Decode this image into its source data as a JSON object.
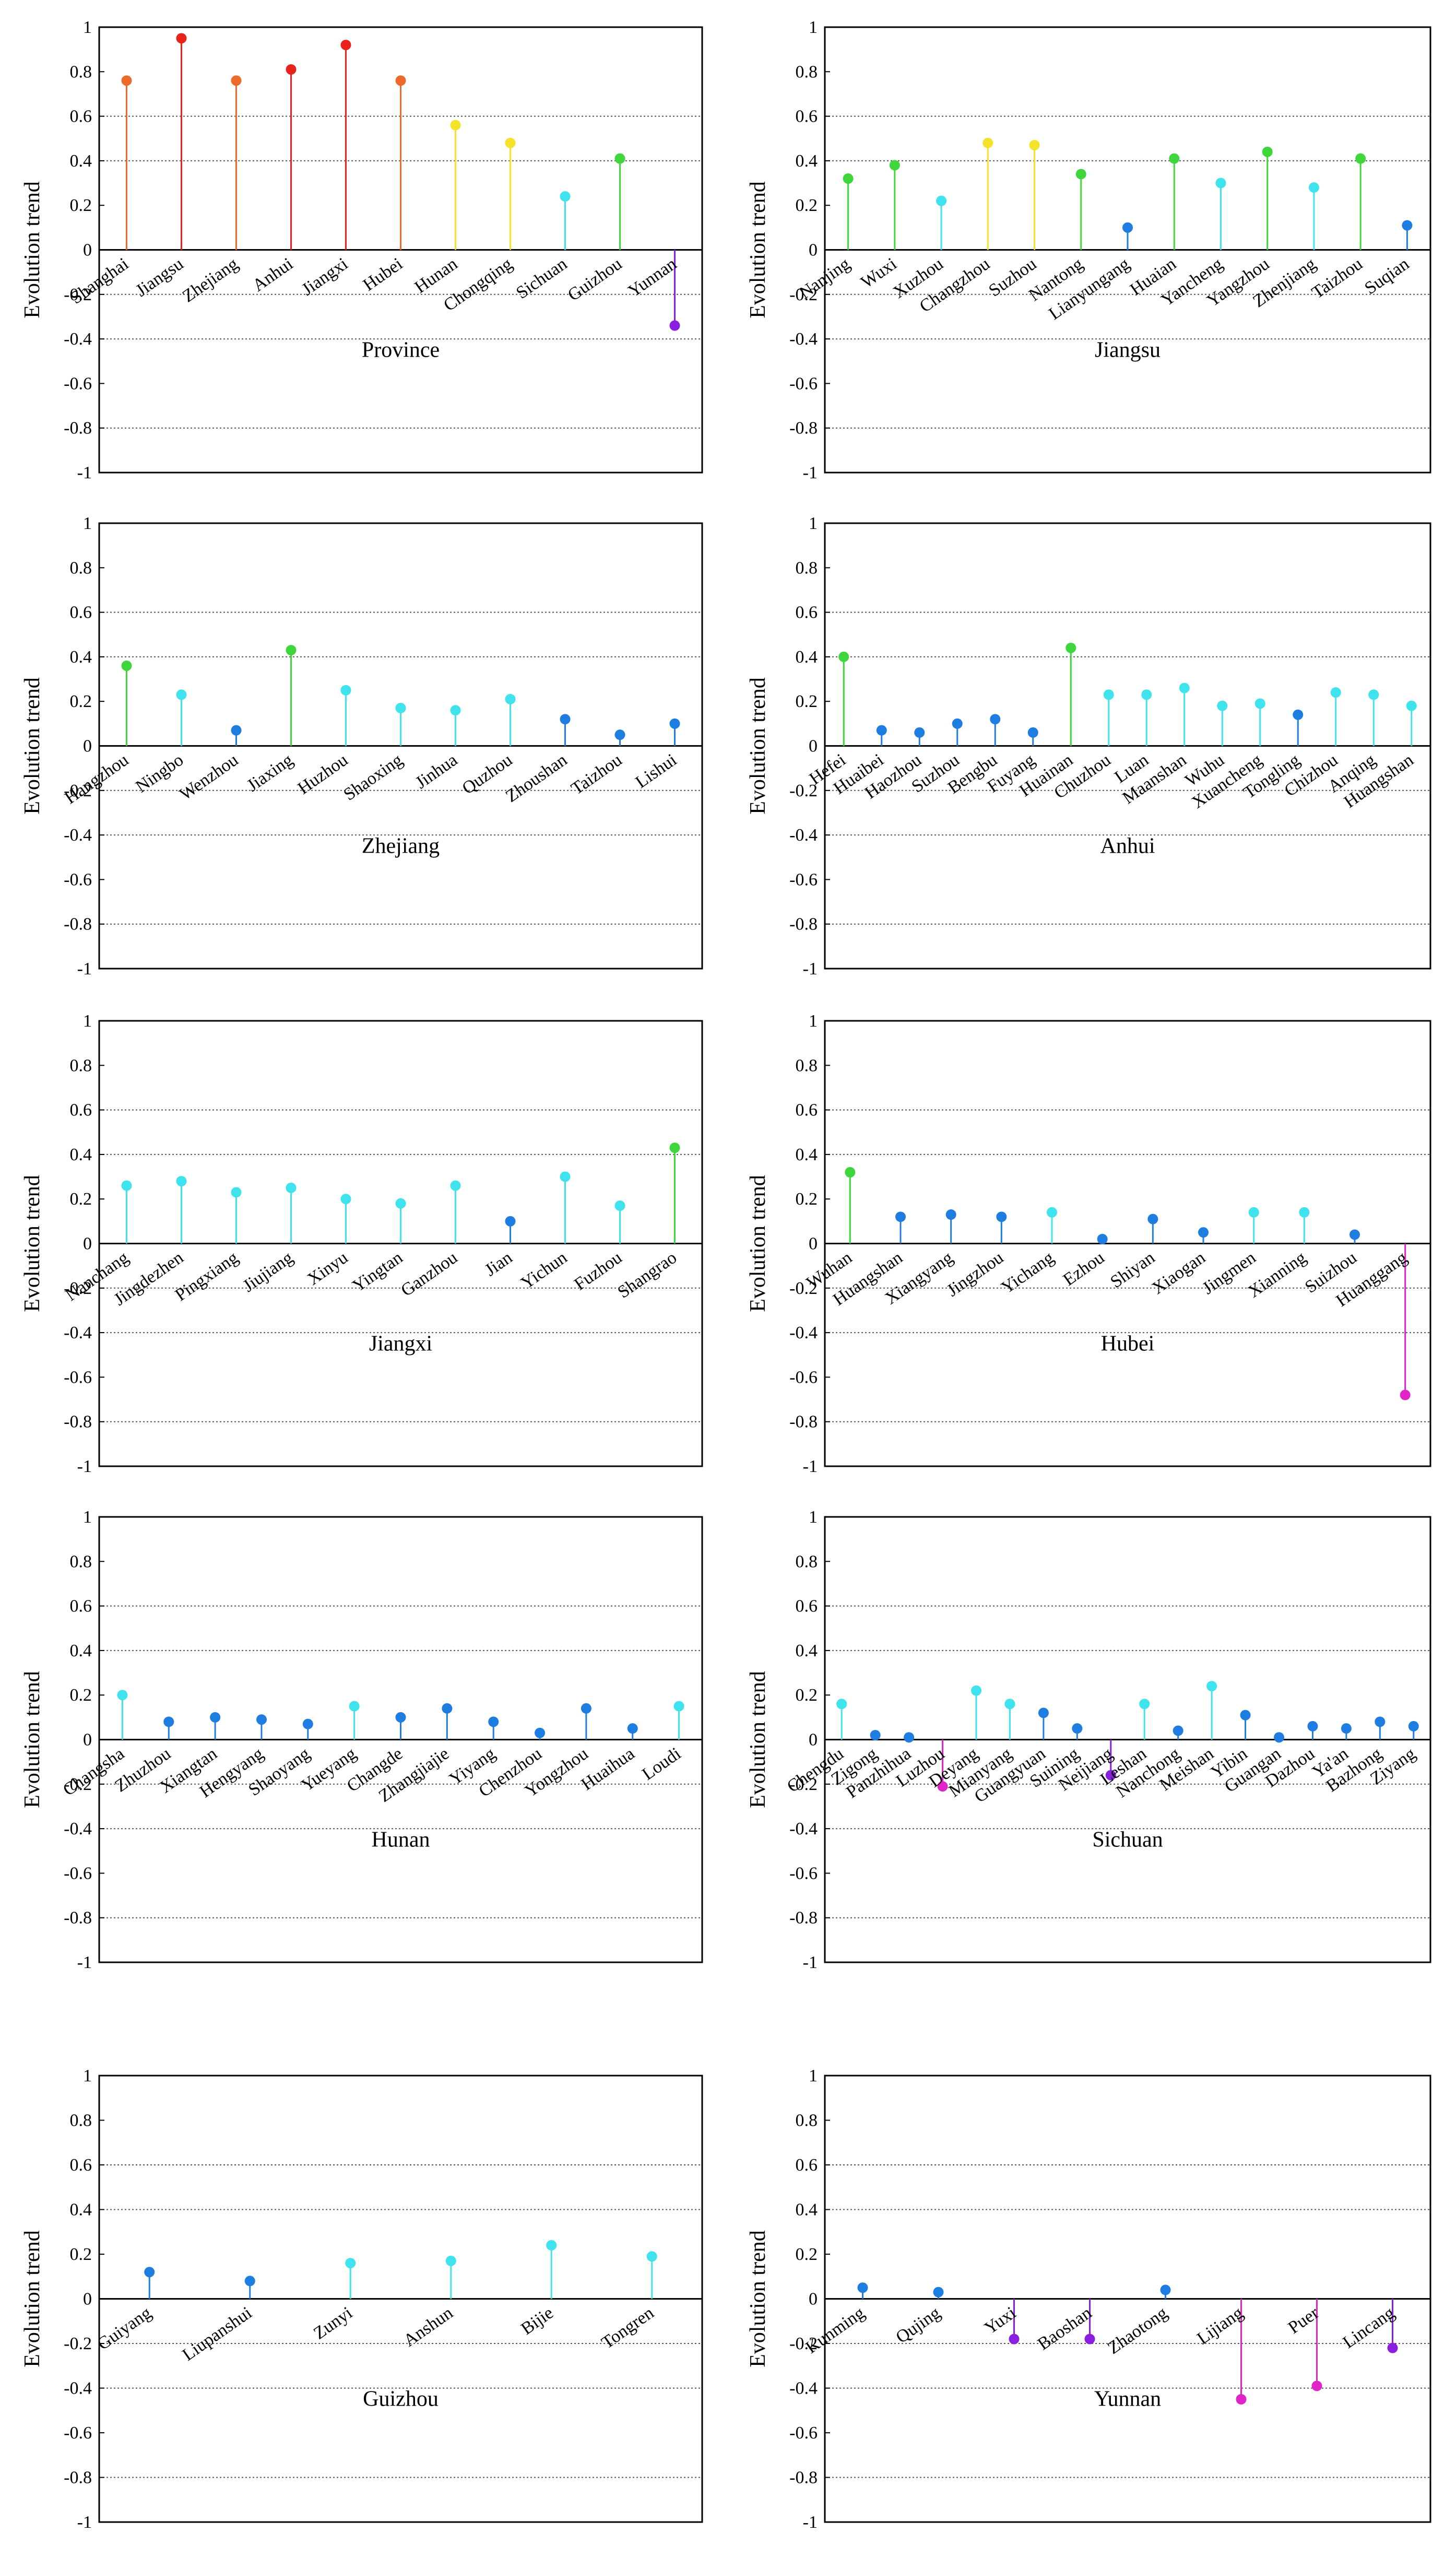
{
  "colors": {
    "red": "#e8231d",
    "orange": "#ec6a2a",
    "yellow": "#f5e22b",
    "green": "#3ed63b",
    "cyan": "#3ee3ee",
    "blue": "#1e7de0",
    "magenta": "#e024c8",
    "purple": "#8a1fe0"
  },
  "chart_data": [
    {
      "type": "lollipop",
      "xlabel": "Province",
      "ylabel": "Evolution trend",
      "ylim": [
        -1,
        1
      ],
      "yticks": [
        1,
        0.8,
        0.6,
        0.4,
        0.2,
        0,
        -0.2,
        -0.4,
        -0.6,
        -0.8,
        -1
      ],
      "ytick_labels": [
        "1",
        "0.8",
        "0.6",
        "0.4",
        "0.2",
        "0",
        "-0.2",
        "-0.4",
        "-0.6",
        "-0.8",
        "-1"
      ],
      "dotted_gridlines": [
        0.6,
        0.4,
        -0.2,
        -0.4,
        -0.8
      ],
      "categories": [
        "Shanghai",
        "Jiangsu",
        "Zhejiang",
        "Anhui",
        "Jiangxi",
        "Hubei",
        "Hunan",
        "Chongqing",
        "Sichuan",
        "Guizhou",
        "Yunnan"
      ],
      "values": [
        0.76,
        0.95,
        0.76,
        0.81,
        0.92,
        0.76,
        0.56,
        0.48,
        0.24,
        0.41,
        -0.34
      ],
      "point_colors": [
        "orange",
        "red",
        "orange",
        "red",
        "red",
        "orange",
        "yellow",
        "yellow",
        "cyan",
        "green",
        "purple"
      ]
    },
    {
      "type": "lollipop",
      "xlabel": "Jiangsu",
      "ylabel": "Evolution trend",
      "ylim": [
        -1,
        1
      ],
      "yticks": [
        1,
        0.8,
        0.6,
        0.4,
        0.2,
        0,
        -0.2,
        -0.4,
        -0.6,
        -0.8,
        -1
      ],
      "ytick_labels": [
        "1",
        "0.8",
        "0.6",
        "0.4",
        "0.2",
        "0",
        "-0.2",
        "-0.4",
        "-0.6",
        "-0.8",
        "-1"
      ],
      "dotted_gridlines": [
        0.6,
        0.4,
        -0.2,
        -0.4,
        -0.8
      ],
      "categories": [
        "Nanjing",
        "Wuxi",
        "Xuzhou",
        "Changzhou",
        "Suzhou",
        "Nantong",
        "Lianyungang",
        "Huaian",
        "Yancheng",
        "Yangzhou",
        "Zhenjiang",
        "Taizhou",
        "Suqian"
      ],
      "values": [
        0.32,
        0.38,
        0.22,
        0.48,
        0.47,
        0.34,
        0.1,
        0.41,
        0.3,
        0.44,
        0.28,
        0.41,
        0.11
      ],
      "point_colors": [
        "green",
        "green",
        "cyan",
        "yellow",
        "yellow",
        "green",
        "blue",
        "green",
        "cyan",
        "green",
        "cyan",
        "green",
        "blue"
      ]
    },
    {
      "type": "lollipop",
      "xlabel": "Zhejiang",
      "ylabel": "Evolution trend",
      "ylim": [
        -1,
        1
      ],
      "yticks": [
        1,
        0.8,
        0.6,
        0.4,
        0.2,
        0,
        -0.2,
        -0.4,
        -0.6,
        -0.8,
        -1
      ],
      "ytick_labels": [
        "1",
        "0.8",
        "0.6",
        "0.4",
        "0.2",
        "0",
        "-0.2",
        "-0.4",
        "-0.6",
        "-0.8",
        "-1"
      ],
      "dotted_gridlines": [
        0.6,
        0.4,
        -0.2,
        -0.4,
        -0.8
      ],
      "categories": [
        "Hangzhou",
        "Ningbo",
        "Wenzhou",
        "Jiaxing",
        "Huzhou",
        "Shaoxing",
        "Jinhua",
        "Quzhou",
        "Zhoushan",
        "Taizhou",
        "Lishui"
      ],
      "values": [
        0.36,
        0.23,
        0.07,
        0.43,
        0.25,
        0.17,
        0.16,
        0.21,
        0.12,
        0.05,
        0.1
      ],
      "point_colors": [
        "green",
        "cyan",
        "blue",
        "green",
        "cyan",
        "cyan",
        "cyan",
        "cyan",
        "blue",
        "blue",
        "blue"
      ]
    },
    {
      "type": "lollipop",
      "xlabel": "Anhui",
      "ylabel": "Evolution trend",
      "ylim": [
        -1,
        1
      ],
      "yticks": [
        1,
        0.8,
        0.6,
        0.4,
        0.2,
        0,
        -0.2,
        -0.4,
        -0.6,
        -0.8,
        -1
      ],
      "ytick_labels": [
        "1",
        "0.8",
        "0.6",
        "0.4",
        "0.2",
        "0",
        "-0.2",
        "-0.4",
        "-0.6",
        "-0.8",
        "-1"
      ],
      "dotted_gridlines": [
        0.6,
        0.4,
        -0.2,
        -0.4,
        -0.8
      ],
      "categories": [
        "Hefei",
        "Huaibei",
        "Haozhou",
        "Suzhou",
        "Bengbu",
        "Fuyang",
        "Huainan",
        "Chuzhou",
        "Luan",
        "Maanshan",
        "Wuhu",
        "Xuancheng",
        "Tongling",
        "Chizhou",
        "Anqing",
        "Huangshan"
      ],
      "values": [
        0.4,
        0.07,
        0.06,
        0.1,
        0.12,
        0.06,
        0.44,
        0.23,
        0.23,
        0.26,
        0.18,
        0.19,
        0.14,
        0.24,
        0.23,
        0.18
      ],
      "point_colors": [
        "green",
        "blue",
        "blue",
        "blue",
        "blue",
        "blue",
        "green",
        "cyan",
        "cyan",
        "cyan",
        "cyan",
        "cyan",
        "blue",
        "cyan",
        "cyan",
        "cyan"
      ]
    },
    {
      "type": "lollipop",
      "xlabel": "Jiangxi",
      "ylabel": "Evolution trend",
      "ylim": [
        -1,
        1
      ],
      "yticks": [
        1,
        0.8,
        0.6,
        0.4,
        0.2,
        0,
        -0.2,
        -0.4,
        -0.6,
        -0.8,
        -1
      ],
      "ytick_labels": [
        "1",
        "0.8",
        "0.6",
        "0.4",
        "0.2",
        "0",
        "-0.2",
        "-0.4",
        "-0.6",
        "-0.8",
        "-1"
      ],
      "dotted_gridlines": [
        0.6,
        0.4,
        -0.2,
        -0.4,
        -0.8
      ],
      "categories": [
        "Nanchang",
        "Jingdezhen",
        "Pingxiang",
        "Jiujiang",
        "Xinyu",
        "Yingtan",
        "Ganzhou",
        "Jian",
        "Yichun",
        "Fuzhou",
        "Shangrao"
      ],
      "values": [
        0.26,
        0.28,
        0.23,
        0.25,
        0.2,
        0.18,
        0.26,
        0.1,
        0.3,
        0.17,
        0.43
      ],
      "point_colors": [
        "cyan",
        "cyan",
        "cyan",
        "cyan",
        "cyan",
        "cyan",
        "cyan",
        "blue",
        "cyan",
        "cyan",
        "green"
      ]
    },
    {
      "type": "lollipop",
      "xlabel": "Hubei",
      "ylabel": "Evolution trend",
      "ylim": [
        -1,
        1
      ],
      "yticks": [
        1,
        0.8,
        0.6,
        0.4,
        0.2,
        0,
        -0.2,
        -0.4,
        -0.6,
        -0.8,
        -1
      ],
      "ytick_labels": [
        "1",
        "0.8",
        "0.6",
        "0.4",
        "0.2",
        "0",
        "-0.2",
        "-0.4",
        "-0.6",
        "-0.8",
        "-1"
      ],
      "dotted_gridlines": [
        0.6,
        0.4,
        -0.2,
        -0.4,
        -0.8
      ],
      "categories": [
        "Wuhan",
        "Huangshan",
        "Xiangyang",
        "Jingzhou",
        "Yichang",
        "Ezhou",
        "Shiyan",
        "Xiaogan",
        "Jingmen",
        "Xianning",
        "Suizhou",
        "Huanggang"
      ],
      "values": [
        0.32,
        0.12,
        0.13,
        0.12,
        0.14,
        0.02,
        0.11,
        0.05,
        0.14,
        0.14,
        0.04,
        -0.68
      ],
      "point_colors": [
        "green",
        "blue",
        "blue",
        "blue",
        "cyan",
        "blue",
        "blue",
        "blue",
        "cyan",
        "cyan",
        "blue",
        "magenta"
      ]
    },
    {
      "type": "lollipop",
      "xlabel": "Hunan",
      "ylabel": "Evolution trend",
      "ylim": [
        -1,
        1
      ],
      "yticks": [
        1,
        0.8,
        0.6,
        0.4,
        0.2,
        0,
        -0.2,
        -0.4,
        -0.6,
        -0.8,
        -1
      ],
      "ytick_labels": [
        "1",
        "0.8",
        "0.6",
        "0.4",
        "0.2",
        "0",
        "-0.2",
        "-0.4",
        "-0.6",
        "-0.8",
        "-1"
      ],
      "dotted_gridlines": [
        0.6,
        0.4,
        -0.2,
        -0.4,
        -0.8
      ],
      "categories": [
        "Changsha",
        "Zhuzhou",
        "Xiangtan",
        "Hengyang",
        "Shaoyang",
        "Yueyang",
        "Changde",
        "Zhangjiajie",
        "Yiyang",
        "Chenzhou",
        "Yongzhou",
        "Huaihua",
        "Loudi"
      ],
      "values": [
        0.2,
        0.08,
        0.1,
        0.09,
        0.07,
        0.15,
        0.1,
        0.14,
        0.08,
        0.03,
        0.14,
        0.05,
        0.15
      ],
      "point_colors": [
        "cyan",
        "blue",
        "blue",
        "blue",
        "blue",
        "cyan",
        "blue",
        "blue",
        "blue",
        "blue",
        "blue",
        "blue",
        "cyan"
      ]
    },
    {
      "type": "lollipop",
      "xlabel": "Sichuan",
      "ylabel": "Evolution trend",
      "ylim": [
        -1,
        1
      ],
      "yticks": [
        1,
        0.8,
        0.6,
        0.4,
        0.2,
        0,
        -0.2,
        -0.4,
        -0.6,
        -0.8,
        -1
      ],
      "ytick_labels": [
        "1",
        "0.8",
        "0.6",
        "0.4",
        "0.2",
        "0",
        "-0.2",
        "-0.4",
        "-0.6",
        "-0.8",
        "-1"
      ],
      "dotted_gridlines": [
        0.6,
        0.4,
        -0.2,
        -0.4,
        -0.8
      ],
      "categories": [
        "Chengdu",
        "Zigong",
        "Panzhihua",
        "Luzhou",
        "Deyang",
        "Mianyang",
        "Guangyuan",
        "Suining",
        "Neijiang",
        "Leshan",
        "Nanchong",
        "Meishan",
        "Yibin",
        "Guangan",
        "Dazhou",
        "Ya'an",
        "Bazhong",
        "Ziyang"
      ],
      "values": [
        0.16,
        0.02,
        0.01,
        -0.21,
        0.22,
        0.16,
        0.12,
        0.05,
        -0.16,
        0.16,
        0.04,
        0.24,
        0.11,
        0.01,
        0.06,
        0.05,
        0.08,
        0.06
      ],
      "point_colors": [
        "cyan",
        "blue",
        "blue",
        "magenta",
        "cyan",
        "cyan",
        "blue",
        "blue",
        "purple",
        "cyan",
        "blue",
        "cyan",
        "blue",
        "blue",
        "blue",
        "blue",
        "blue",
        "blue"
      ]
    },
    {
      "type": "lollipop",
      "xlabel": "Guizhou",
      "ylabel": "Evolution trend",
      "ylim": [
        -1,
        1
      ],
      "yticks": [
        1,
        0.8,
        0.6,
        0.4,
        0.2,
        0,
        -0.2,
        -0.4,
        -0.6,
        -0.8,
        -1
      ],
      "ytick_labels": [
        "1",
        "0.8",
        "0.6",
        "0.4",
        "0.2",
        "0",
        "-0.2",
        "-0.4",
        "-0.6",
        "-0.8",
        "-1"
      ],
      "dotted_gridlines": [
        0.6,
        0.4,
        -0.2,
        -0.4,
        -0.8
      ],
      "categories": [
        "Guiyang",
        "Liupanshui",
        "Zunyi",
        "Anshun",
        "Bijie",
        "Tongren"
      ],
      "values": [
        0.12,
        0.08,
        0.16,
        0.17,
        0.24,
        0.19
      ],
      "point_colors": [
        "blue",
        "blue",
        "cyan",
        "cyan",
        "cyan",
        "cyan"
      ]
    },
    {
      "type": "lollipop",
      "xlabel": "Yunnan",
      "ylabel": "Evolution trend",
      "ylim": [
        -1,
        1
      ],
      "yticks": [
        1,
        0.8,
        0.6,
        0.4,
        0.2,
        0,
        -0.2,
        -0.4,
        -0.6,
        -0.8,
        -1
      ],
      "ytick_labels": [
        "1",
        "0.8",
        "0.6",
        "0.4",
        "0.2",
        "0",
        "-0.2",
        "-0.4",
        "-0.6",
        "-0.8",
        "-1"
      ],
      "dotted_gridlines": [
        0.6,
        0.4,
        -0.2,
        -0.4,
        -0.8
      ],
      "categories": [
        "Kunming",
        "Qujing",
        "Yuxi",
        "Baoshan",
        "Zhaotong",
        "Lijiang",
        "Puer",
        "Lincang"
      ],
      "values": [
        0.05,
        0.03,
        -0.18,
        -0.18,
        0.04,
        -0.45,
        -0.39,
        -0.22
      ],
      "point_colors": [
        "blue",
        "blue",
        "purple",
        "purple",
        "blue",
        "magenta",
        "magenta",
        "purple"
      ]
    }
  ]
}
